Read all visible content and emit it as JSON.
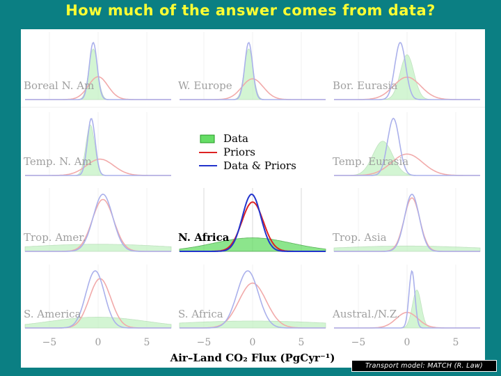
{
  "slide": {
    "title": "How much of the answer comes from data?",
    "credit": "Transport model: MATCH (R. Law)"
  },
  "colors": {
    "background": "#0b7f83",
    "title": "#ffff33",
    "data_fill": "#66dd66",
    "data_line": "#229922",
    "priors": "#dd2222",
    "data_and_priors": "#2233cc"
  },
  "chart_data": {
    "type": "area",
    "title": "",
    "xlabel": "Air–Land CO₂ Flux (PgCyr⁻¹)",
    "ylabel": "",
    "xlim": [
      -7.5,
      7.5
    ],
    "xticks": [
      -5,
      0,
      5
    ],
    "xtick_labels": [
      "−5",
      "0",
      "5"
    ],
    "grid": true,
    "legend": {
      "placement": "center",
      "entries": [
        "Data",
        "Priors",
        "Data & Priors"
      ]
    },
    "panels": [
      {
        "name": "Boreal N. Am",
        "highlight": false,
        "data": {
          "mean": -0.5,
          "sd": 0.45
        },
        "prior": {
          "mean": 0.0,
          "sd": 1.0
        },
        "post": {
          "mean": -0.5,
          "sd": 0.4
        }
      },
      {
        "name": "W. Europe",
        "highlight": false,
        "data": {
          "mean": -0.4,
          "sd": 0.45
        },
        "prior": {
          "mean": 0.0,
          "sd": 1.1
        },
        "post": {
          "mean": -0.4,
          "sd": 0.4
        }
      },
      {
        "name": "Bor. Eurasia",
        "highlight": false,
        "data": {
          "mean": 0.0,
          "sd": 0.7
        },
        "prior": {
          "mean": 0.0,
          "sd": 1.4
        },
        "post": {
          "mean": -0.7,
          "sd": 0.55
        }
      },
      {
        "name": "Temp. N. Am",
        "highlight": false,
        "data": {
          "mean": -0.8,
          "sd": 0.45
        },
        "prior": {
          "mean": 0.2,
          "sd": 1.4
        },
        "post": {
          "mean": -0.7,
          "sd": 0.4
        }
      },
      {
        "name": "Temp. Eurasia",
        "highlight": false,
        "data": {
          "mean": -2.5,
          "sd": 1.0
        },
        "prior": {
          "mean": 0.0,
          "sd": 1.6
        },
        "post": {
          "mean": -1.4,
          "sd": 0.6
        }
      },
      {
        "name": "Trop. Amer.",
        "highlight": false,
        "data": {
          "mean": 0.0,
          "sd": 8.0
        },
        "prior": {
          "mean": 0.5,
          "sd": 1.1
        },
        "post": {
          "mean": 0.5,
          "sd": 1.0
        }
      },
      {
        "name": "N. Africa",
        "highlight": true,
        "data": {
          "mean": 0.0,
          "sd": 4.0
        },
        "prior": {
          "mean": 0.0,
          "sd": 1.1
        },
        "post": {
          "mean": -0.1,
          "sd": 0.95
        }
      },
      {
        "name": "Trop. Asia",
        "highlight": false,
        "data": {
          "mean": 0.0,
          "sd": 8.0
        },
        "prior": {
          "mean": 0.5,
          "sd": 0.8
        },
        "post": {
          "mean": 0.5,
          "sd": 0.75
        }
      },
      {
        "name": "S. America",
        "highlight": false,
        "data": {
          "mean": 0.0,
          "sd": 5.0
        },
        "prior": {
          "mean": 0.2,
          "sd": 1.1
        },
        "post": {
          "mean": -0.3,
          "sd": 0.95
        }
      },
      {
        "name": "S. Africa",
        "highlight": false,
        "data": {
          "mean": 0.0,
          "sd": 9.0
        },
        "prior": {
          "mean": 0.0,
          "sd": 1.4
        },
        "post": {
          "mean": -0.5,
          "sd": 1.1
        }
      },
      {
        "name": "Austral./N.Z.",
        "highlight": false,
        "data": {
          "mean": 1.0,
          "sd": 0.45
        },
        "prior": {
          "mean": 0.0,
          "sd": 1.1
        },
        "post": {
          "mean": 0.5,
          "sd": 0.3
        }
      }
    ]
  }
}
